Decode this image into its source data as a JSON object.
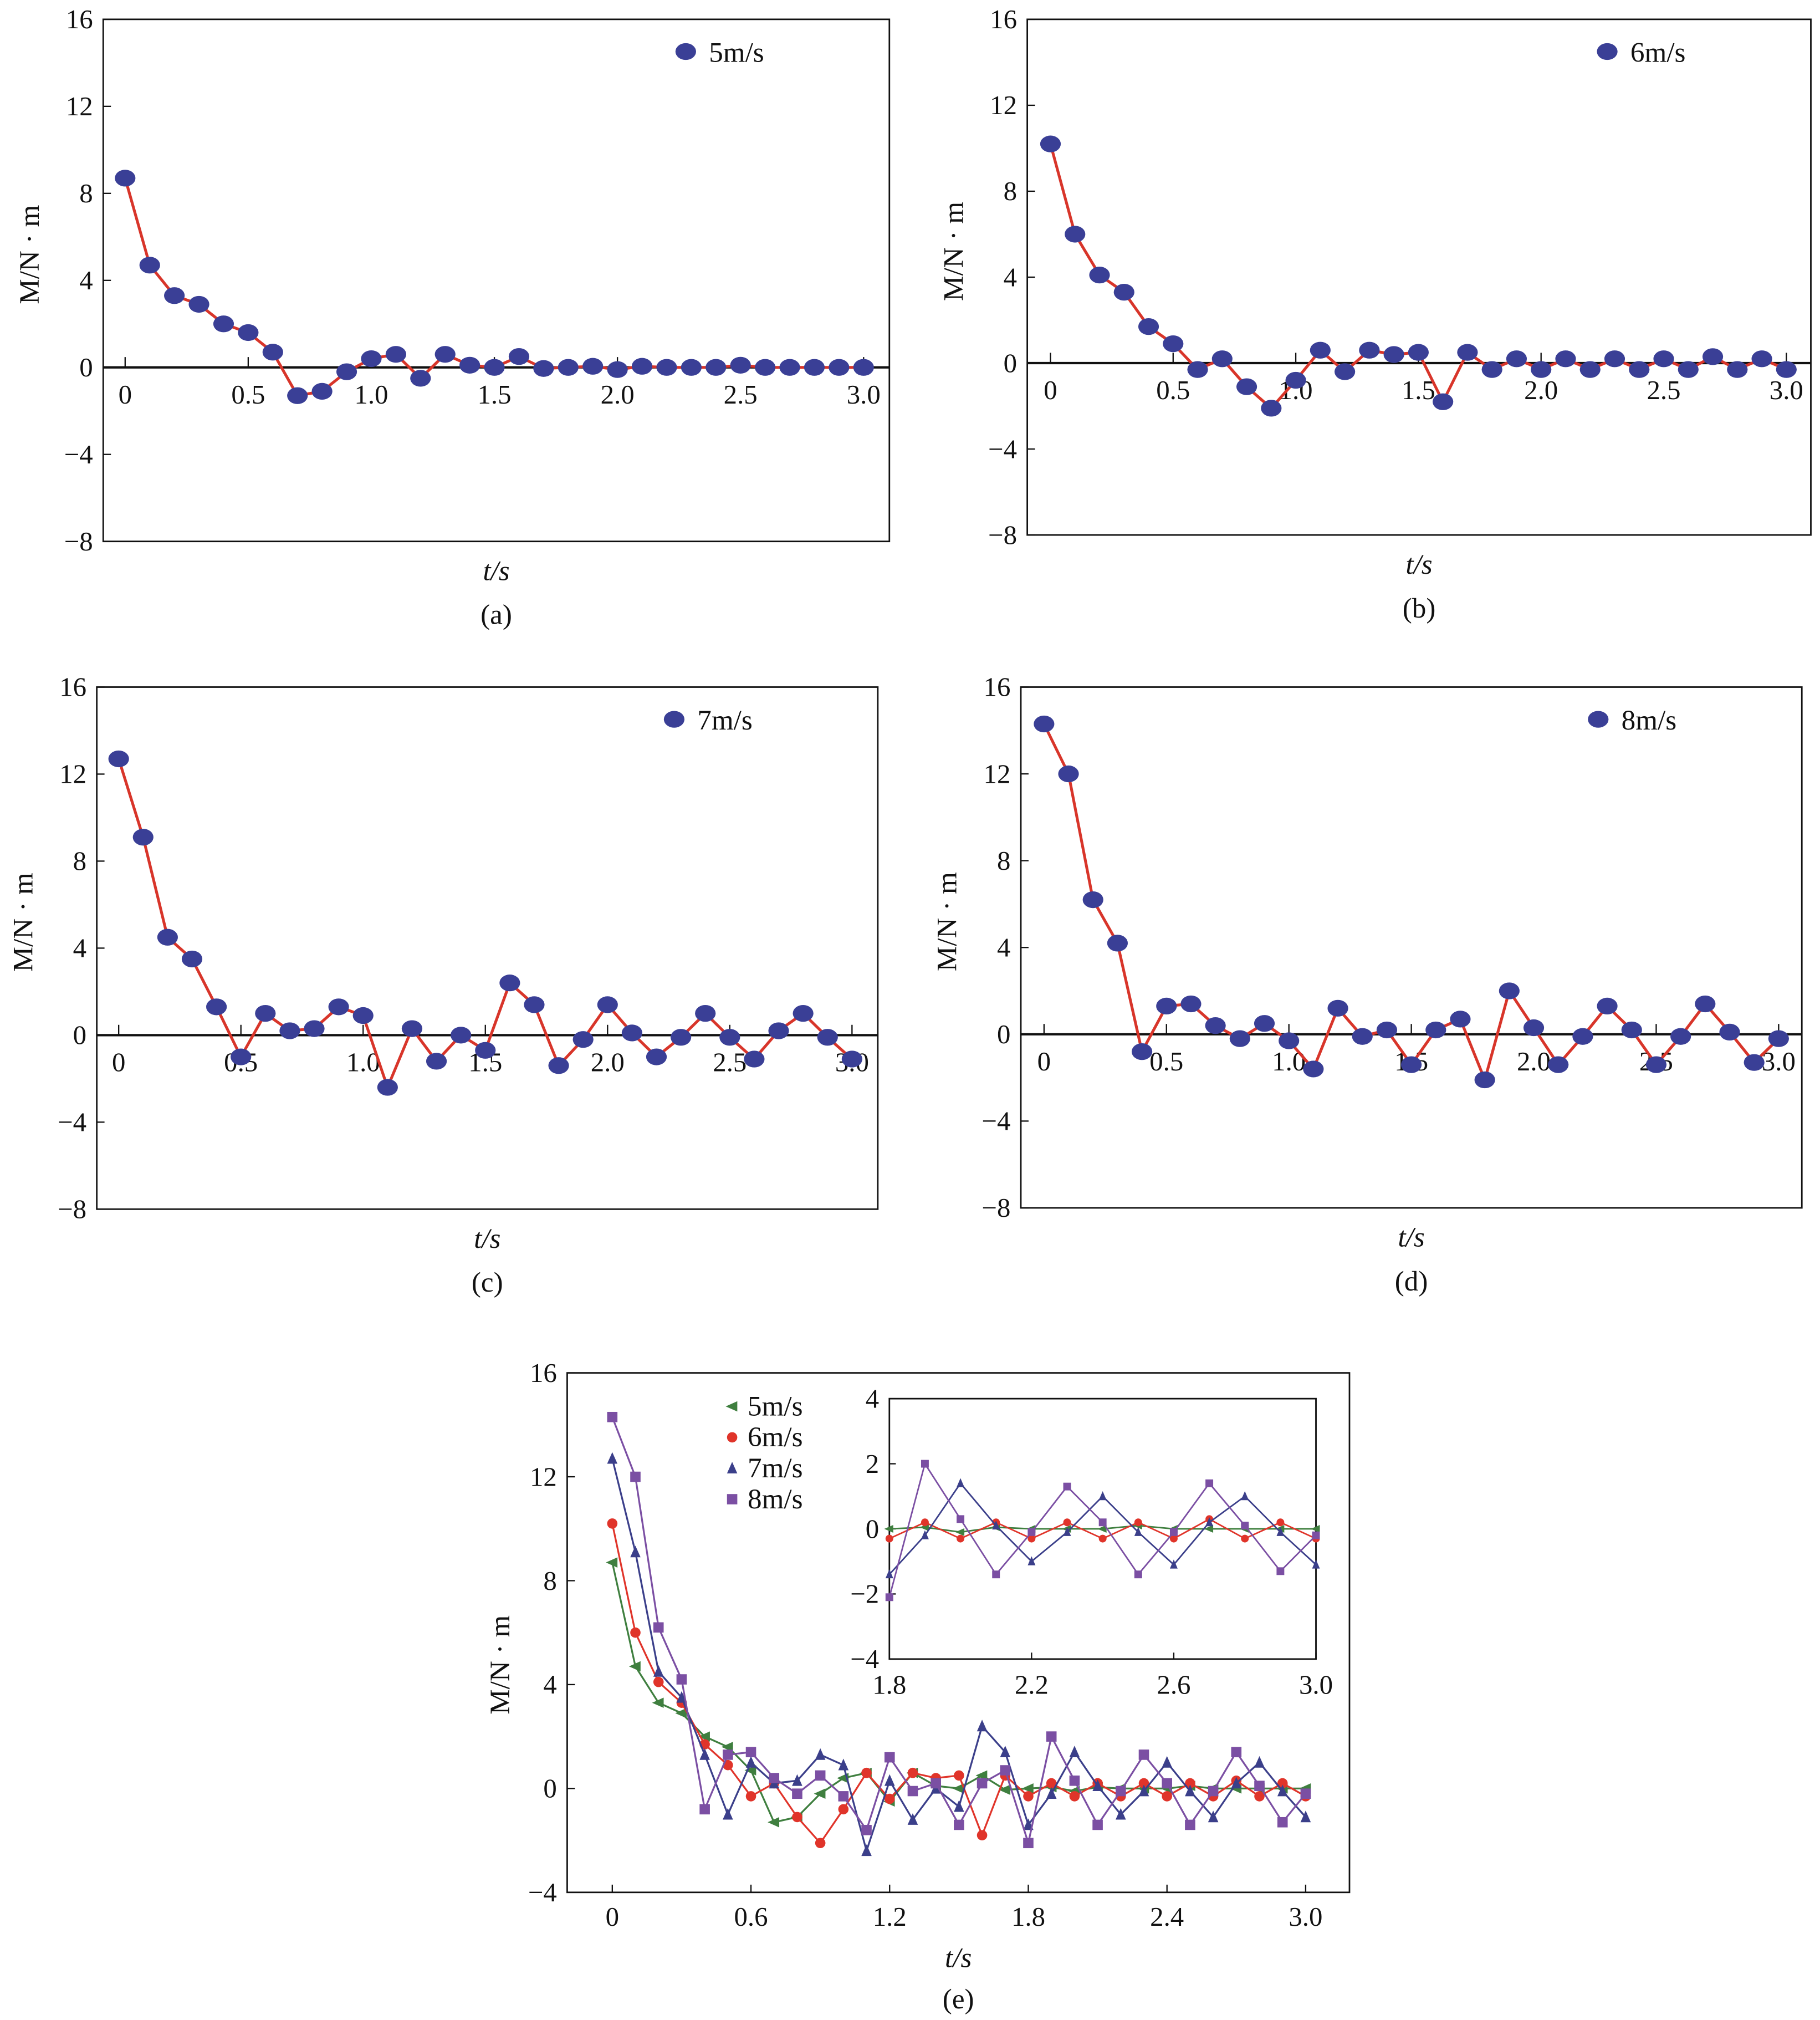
{
  "colors": {
    "marker": "#3a3f96",
    "line": "#d8352a",
    "s5": "#3f7f3f",
    "s6": "#e0342a",
    "s7": "#3b3f8a",
    "s8": "#7b4fa3"
  },
  "chart_data": [
    {
      "id": "a",
      "type": "line",
      "caption": "(a)",
      "xlabel": "t/s",
      "ylabel": "M/N · m",
      "legend": "5m/s",
      "legend_placement": "top-right",
      "xlim": [
        0,
        3.0
      ],
      "ylim": [
        -8,
        16
      ],
      "xticks": [
        "0",
        "0.5",
        "1.0",
        "1.5",
        "2.0",
        "2.5",
        "3.0"
      ],
      "yticks": [
        "16",
        "12",
        "8",
        "4",
        "0",
        "−4",
        "−8"
      ],
      "x_step": 0.1,
      "values": [
        8.7,
        4.7,
        3.3,
        2.9,
        2.0,
        1.6,
        0.7,
        -1.3,
        -1.1,
        -0.2,
        0.4,
        0.6,
        -0.5,
        0.6,
        0.1,
        0.0,
        0.5,
        -0.05,
        0.0,
        0.05,
        -0.1,
        0.05,
        0.0,
        0.0,
        0.0,
        0.1,
        0.0,
        0.0,
        0.0,
        0.0,
        0.0
      ]
    },
    {
      "id": "b",
      "type": "line",
      "caption": "(b)",
      "xlabel": "t/s",
      "ylabel": "M/N · m",
      "legend": "6m/s",
      "legend_placement": "top-right",
      "xlim": [
        0,
        3.0
      ],
      "ylim": [
        -8,
        16
      ],
      "xticks": [
        "0",
        "0.5",
        "1.0",
        "1.5",
        "2.0",
        "2.5",
        "3.0"
      ],
      "yticks": [
        "16",
        "12",
        "8",
        "4",
        "0",
        "−4",
        "−8"
      ],
      "x_step": 0.1,
      "values": [
        10.2,
        6.0,
        4.1,
        3.3,
        1.7,
        0.9,
        -0.3,
        0.2,
        -1.1,
        -2.1,
        -0.8,
        0.6,
        -0.4,
        0.6,
        0.4,
        0.5,
        -1.8,
        0.5,
        -0.3,
        0.2,
        -0.3,
        0.2,
        -0.3,
        0.2,
        -0.3,
        0.2,
        -0.3,
        0.3,
        -0.3,
        0.2,
        -0.3
      ]
    },
    {
      "id": "c",
      "type": "line",
      "caption": "(c)",
      "xlabel": "t/s",
      "ylabel": "M/N · m",
      "legend": "7m/s",
      "legend_placement": "top-right",
      "xlim": [
        0,
        3.0
      ],
      "ylim": [
        -8,
        16
      ],
      "xticks": [
        "0",
        "0.5",
        "1.0",
        "1.5",
        "2.0",
        "2.5",
        "3.0"
      ],
      "yticks": [
        "16",
        "12",
        "8",
        "4",
        "0",
        "−4",
        "−8"
      ],
      "x_step": 0.1,
      "values": [
        12.7,
        9.1,
        4.5,
        3.5,
        1.3,
        -1.0,
        1.0,
        0.2,
        0.3,
        1.3,
        0.9,
        -2.4,
        0.3,
        -1.2,
        0.0,
        -0.7,
        2.4,
        1.4,
        -1.4,
        -0.2,
        1.4,
        0.1,
        -1.0,
        -0.1,
        1.0,
        -0.1,
        -1.1,
        0.2,
        1.0,
        -0.1,
        -1.1
      ]
    },
    {
      "id": "d",
      "type": "line",
      "caption": "(d)",
      "xlabel": "t/s",
      "ylabel": "M/N · m",
      "legend": "8m/s",
      "legend_placement": "top-right",
      "xlim": [
        0,
        3.0
      ],
      "ylim": [
        -8,
        16
      ],
      "xticks": [
        "0",
        "0.5",
        "1.0",
        "1.5",
        "2.0",
        "2.5",
        "3.0"
      ],
      "yticks": [
        "16",
        "12",
        "8",
        "4",
        "0",
        "−4",
        "−8"
      ],
      "x_step": 0.1,
      "values": [
        14.3,
        12.0,
        6.2,
        4.2,
        -0.8,
        1.3,
        1.4,
        0.4,
        -0.2,
        0.5,
        -0.3,
        -1.6,
        1.2,
        -0.1,
        0.2,
        -1.4,
        0.2,
        0.7,
        -2.1,
        2.0,
        0.3,
        -1.4,
        -0.1,
        1.3,
        0.2,
        -1.4,
        -0.1,
        1.4,
        0.1,
        -1.3,
        -0.2
      ]
    },
    {
      "id": "e",
      "type": "line",
      "caption": "(e)",
      "xlabel": "t/s",
      "ylabel": "M/N · m",
      "xlim": [
        -0.2,
        3.2
      ],
      "ylim": [
        -4,
        16
      ],
      "xticks": [
        "0",
        "0.6",
        "1.2",
        "1.8",
        "2.4",
        "3.0"
      ],
      "yticks": [
        "16",
        "12",
        "8",
        "4",
        "0",
        "−4"
      ],
      "legend": [
        "5m/s",
        "6m/s",
        "7m/s",
        "8m/s"
      ],
      "legend_placement": "top-left",
      "series_from": [
        "a",
        "b",
        "c",
        "d"
      ],
      "inset": {
        "xlim": [
          1.8,
          3.0
        ],
        "ylim": [
          -4,
          4
        ],
        "xticks": [
          "1.8",
          "2.2",
          "2.6",
          "3.0"
        ],
        "yticks": [
          "4",
          "2",
          "0",
          "−2",
          "−4"
        ]
      }
    }
  ]
}
